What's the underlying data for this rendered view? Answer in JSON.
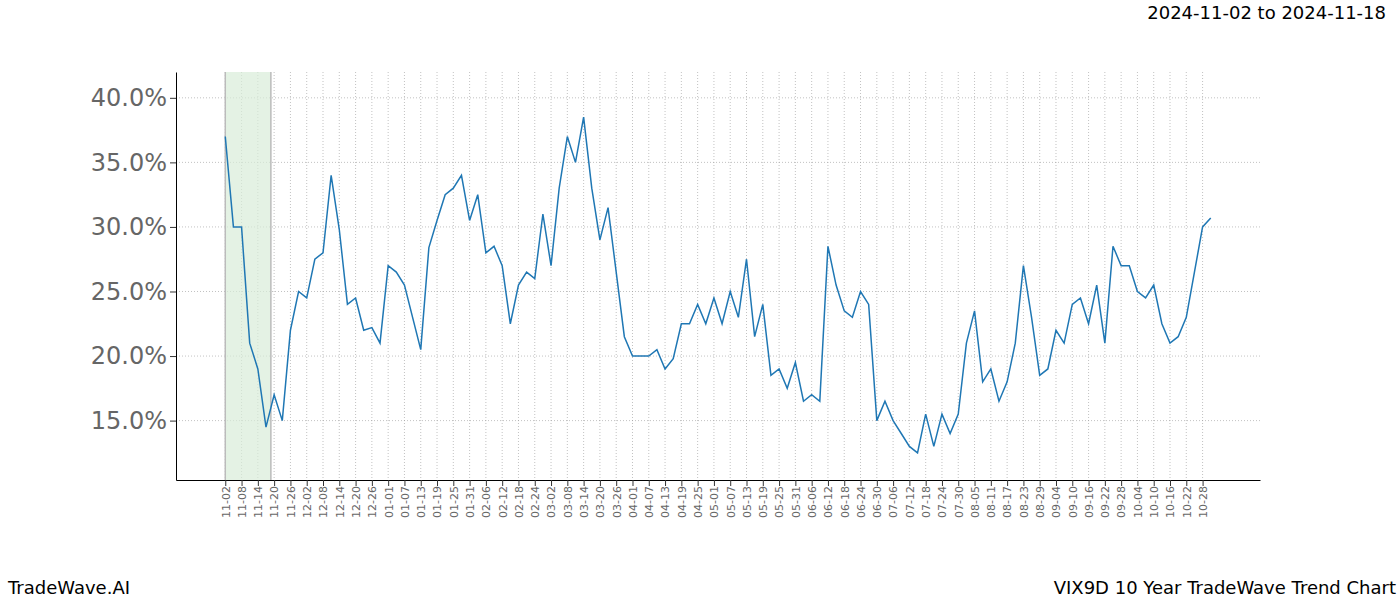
{
  "chart_data": {
    "type": "line",
    "title": "VIX9D 10 Year TradeWave Trend Chart",
    "subtitle": "2024-11-02 to 2024-11-18",
    "source": "TradeWave.AI",
    "color": "#1f77b4",
    "grid": true,
    "highlight": [
      0,
      5.6
    ],
    "categories": [
      "11-02",
      null,
      "11-08",
      null,
      "11-14",
      null,
      "11-20",
      null,
      "11-26",
      null,
      "12-02",
      null,
      "12-08",
      null,
      "12-14",
      null,
      "12-20",
      null,
      "12-26",
      null,
      "01-01",
      null,
      "01-07",
      null,
      "01-13",
      null,
      "01-19",
      null,
      "01-25",
      null,
      "01-31",
      null,
      "02-06",
      null,
      "02-12",
      null,
      "02-18",
      null,
      "02-24",
      null,
      "03-02",
      null,
      "03-08",
      null,
      "03-14",
      null,
      "03-20",
      null,
      "03-26",
      null,
      "04-01",
      null,
      "04-07",
      null,
      "04-13",
      null,
      "04-19",
      null,
      "04-25",
      null,
      "05-01",
      null,
      "05-07",
      null,
      "05-13",
      null,
      "05-19",
      null,
      "05-25",
      null,
      "05-31",
      null,
      "06-06",
      null,
      "06-12",
      null,
      "06-18",
      null,
      "06-24",
      null,
      "06-30",
      null,
      "07-06",
      null,
      "07-12",
      null,
      "07-18",
      null,
      "07-24",
      null,
      "07-30",
      null,
      "08-05",
      null,
      "08-11",
      null,
      "08-17",
      null,
      "08-23",
      null,
      "08-29",
      null,
      "09-04",
      null,
      "09-10",
      null,
      "09-16",
      null,
      "09-22",
      null,
      "09-28",
      null,
      "10-04",
      null,
      "10-10",
      null,
      "10-16",
      null,
      "10-22",
      null,
      "10-28",
      null
    ],
    "values": [
      37.0,
      30.0,
      30.0,
      21.0,
      19.0,
      14.5,
      17.0,
      15.0,
      22.0,
      25.0,
      24.5,
      27.5,
      28.0,
      34.0,
      29.8,
      24.0,
      24.5,
      22.0,
      22.2,
      21.0,
      27.0,
      26.5,
      25.5,
      23.0,
      20.5,
      28.4,
      30.5,
      32.5,
      33.0,
      34.0,
      30.5,
      32.5,
      28.0,
      28.5,
      27.0,
      22.5,
      25.5,
      26.5,
      26.0,
      31.0,
      27.0,
      33.0,
      37.0,
      35.0,
      38.5,
      33.0,
      29.0,
      31.5,
      26.5,
      21.5,
      20.0,
      20.0,
      20.0,
      20.5,
      19.0,
      19.8,
      22.5,
      22.5,
      24.0,
      22.5,
      24.5,
      22.5,
      25.0,
      23.0,
      27.5,
      21.5,
      24.0,
      18.5,
      19.0,
      17.5,
      19.5,
      16.5,
      17.0,
      16.5,
      28.5,
      25.5,
      23.5,
      23.0,
      25.0,
      24.0,
      15.0,
      16.5,
      15.0,
      14.0,
      13.0,
      12.5,
      15.5,
      13.0,
      15.5,
      14.0,
      15.5,
      21.0,
      23.5,
      18.0,
      19.0,
      16.5,
      18.0,
      21.0,
      27.0,
      23.0,
      18.5,
      19.0,
      22.0,
      21.0,
      24.0,
      24.5,
      22.5,
      25.5,
      21.0,
      28.5,
      27.0,
      27.0,
      25.0,
      24.5,
      25.5,
      22.5,
      21.0,
      21.5,
      23.0,
      26.5,
      30.0,
      30.7
    ],
    "ylim": [
      10.4,
      42.0
    ],
    "yticks": [
      {
        "value": 15,
        "label": "15.0%"
      },
      {
        "value": 20,
        "label": "20.0%"
      },
      {
        "value": 25,
        "label": "25.0%"
      },
      {
        "value": 30,
        "label": "30.0%"
      },
      {
        "value": 35,
        "label": "35.0%"
      },
      {
        "value": 40,
        "label": "40.0%"
      }
    ]
  }
}
